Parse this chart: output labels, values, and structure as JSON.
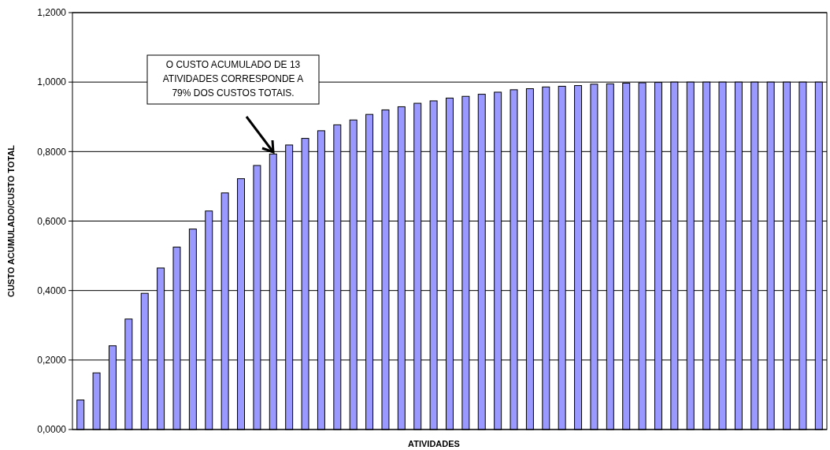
{
  "chart_data": {
    "type": "bar",
    "xlabel": "ATIVIDADES",
    "ylabel": "CUSTO ACUMULADO/CUSTO TOTAL",
    "categories": [
      null,
      null,
      null,
      null,
      null,
      null,
      null,
      null,
      null,
      null,
      null,
      null,
      null,
      null,
      null,
      null,
      null,
      null,
      null,
      null,
      null,
      null,
      null,
      null,
      null,
      null,
      null,
      null,
      null,
      null,
      null,
      null,
      null,
      null,
      null,
      null,
      null,
      null,
      null,
      null,
      null,
      null,
      null,
      null,
      null,
      null,
      null
    ],
    "values": [
      0.085,
      0.163,
      0.241,
      0.318,
      0.392,
      0.465,
      0.525,
      0.577,
      0.629,
      0.681,
      0.722,
      0.76,
      0.793,
      0.819,
      0.838,
      0.86,
      0.877,
      0.891,
      0.907,
      0.92,
      0.929,
      0.939,
      0.946,
      0.954,
      0.959,
      0.965,
      0.971,
      0.978,
      0.981,
      0.986,
      0.988,
      0.99,
      0.994,
      0.995,
      0.997,
      0.998,
      0.999,
      1,
      1,
      1,
      1,
      1,
      1,
      1,
      1,
      1,
      1
    ],
    "color": "#9999ff",
    "ylim": [
      0,
      1.2
    ],
    "yticks": [
      {
        "value": 0,
        "label": "0,0000"
      },
      {
        "value": 0.2,
        "label": "0,2000"
      },
      {
        "value": 0.4,
        "label": "0,4000"
      },
      {
        "value": 0.6,
        "label": "0,6000"
      },
      {
        "value": 0.8,
        "label": "0,8000"
      },
      {
        "value": 1,
        "label": "1,0000"
      },
      {
        "value": 1.2,
        "label": "1,2000"
      }
    ],
    "grid": "y",
    "tick_labels": "y",
    "annotations": [
      "O CUSTO ACUMULADO DE 13\nATIVIDADES CORRESPONDE A\n79% DOS CUSTOS TOTAIS."
    ]
  }
}
